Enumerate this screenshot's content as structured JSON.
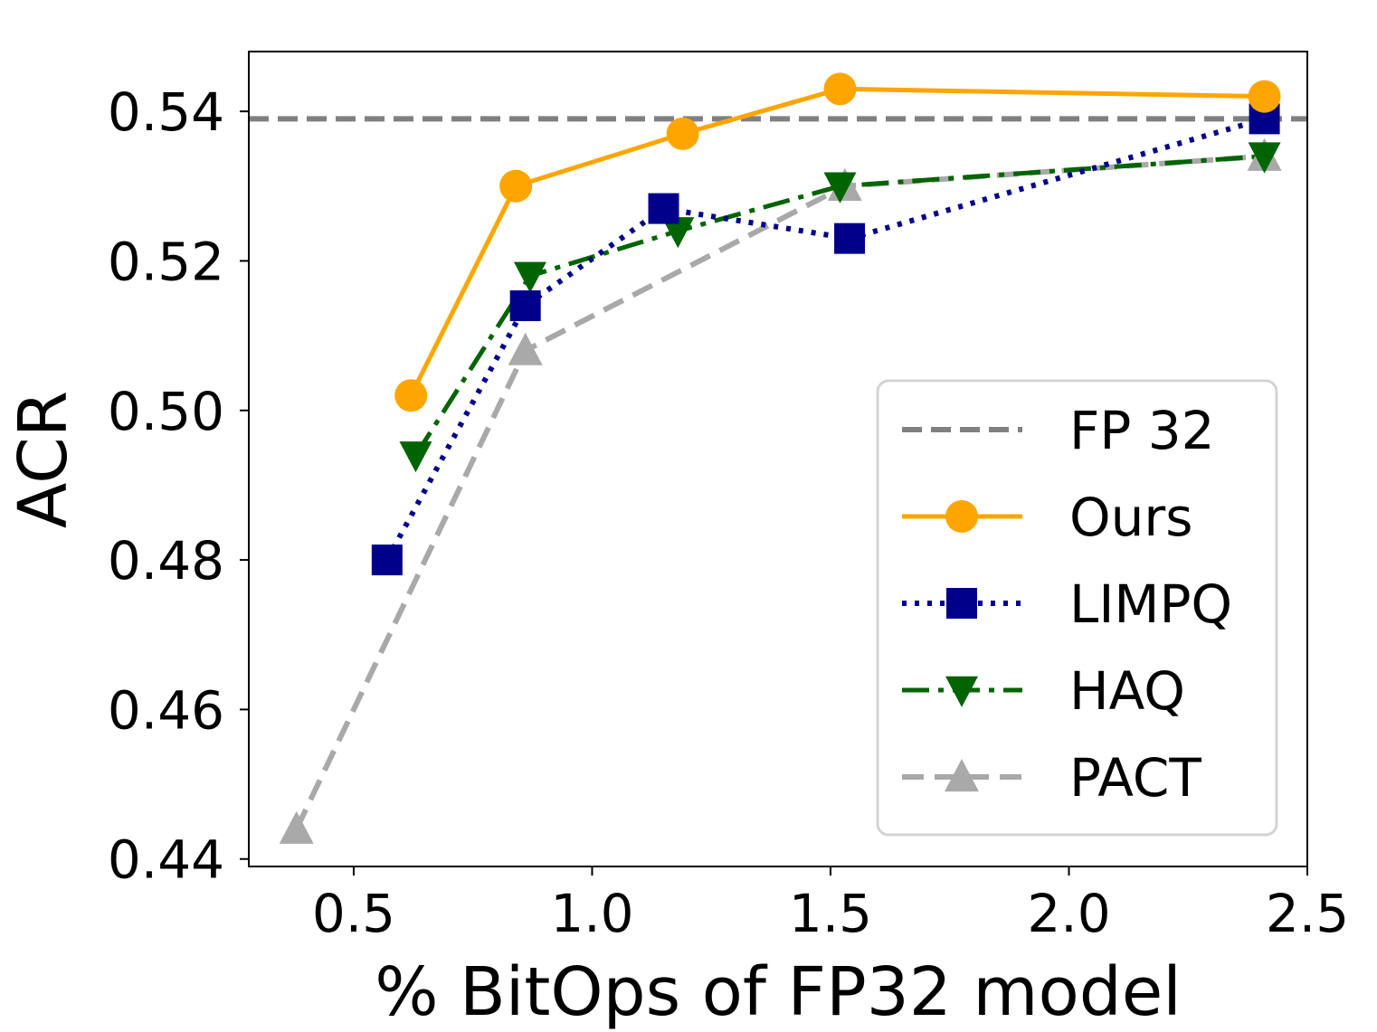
{
  "chart_data": {
    "type": "line",
    "xlabel": "% BitOps of FP32 model",
    "ylabel": "ACR",
    "xlim": [
      0.28,
      2.5
    ],
    "ylim": [
      0.439,
      0.548
    ],
    "xticks": [
      0.5,
      1.0,
      1.5,
      2.0,
      2.5
    ],
    "xtick_labels": [
      "0.5",
      "1.0",
      "1.5",
      "2.0",
      "2.5"
    ],
    "yticks": [
      0.44,
      0.46,
      0.48,
      0.5,
      0.52,
      0.54
    ],
    "ytick_labels": [
      "0.44",
      "0.46",
      "0.48",
      "0.50",
      "0.52",
      "0.54"
    ],
    "legend_position": "lower-right",
    "reference_line": {
      "name": "FP 32",
      "y": 0.539,
      "color": "#808080"
    },
    "series": [
      {
        "name": "Ours",
        "color": "#FFA500",
        "marker": "circle",
        "x": [
          0.62,
          0.84,
          1.19,
          1.52,
          2.41
        ],
        "y": [
          0.502,
          0.53,
          0.537,
          0.543,
          0.542
        ]
      },
      {
        "name": "LIMPQ",
        "color": "#00008B",
        "marker": "square",
        "x": [
          0.57,
          0.86,
          1.15,
          1.54,
          2.41
        ],
        "y": [
          0.48,
          0.514,
          0.527,
          0.523,
          0.539
        ]
      },
      {
        "name": "HAQ",
        "color": "#006400",
        "marker": "triangle-down",
        "x": [
          0.63,
          0.87,
          1.18,
          1.52,
          2.41
        ],
        "y": [
          0.494,
          0.518,
          0.524,
          0.53,
          0.534
        ]
      },
      {
        "name": "PACT",
        "color": "#A9A9A9",
        "marker": "triangle-up",
        "x": [
          0.38,
          0.86,
          1.53,
          2.41
        ],
        "y": [
          0.444,
          0.508,
          0.53,
          0.534
        ]
      }
    ]
  }
}
